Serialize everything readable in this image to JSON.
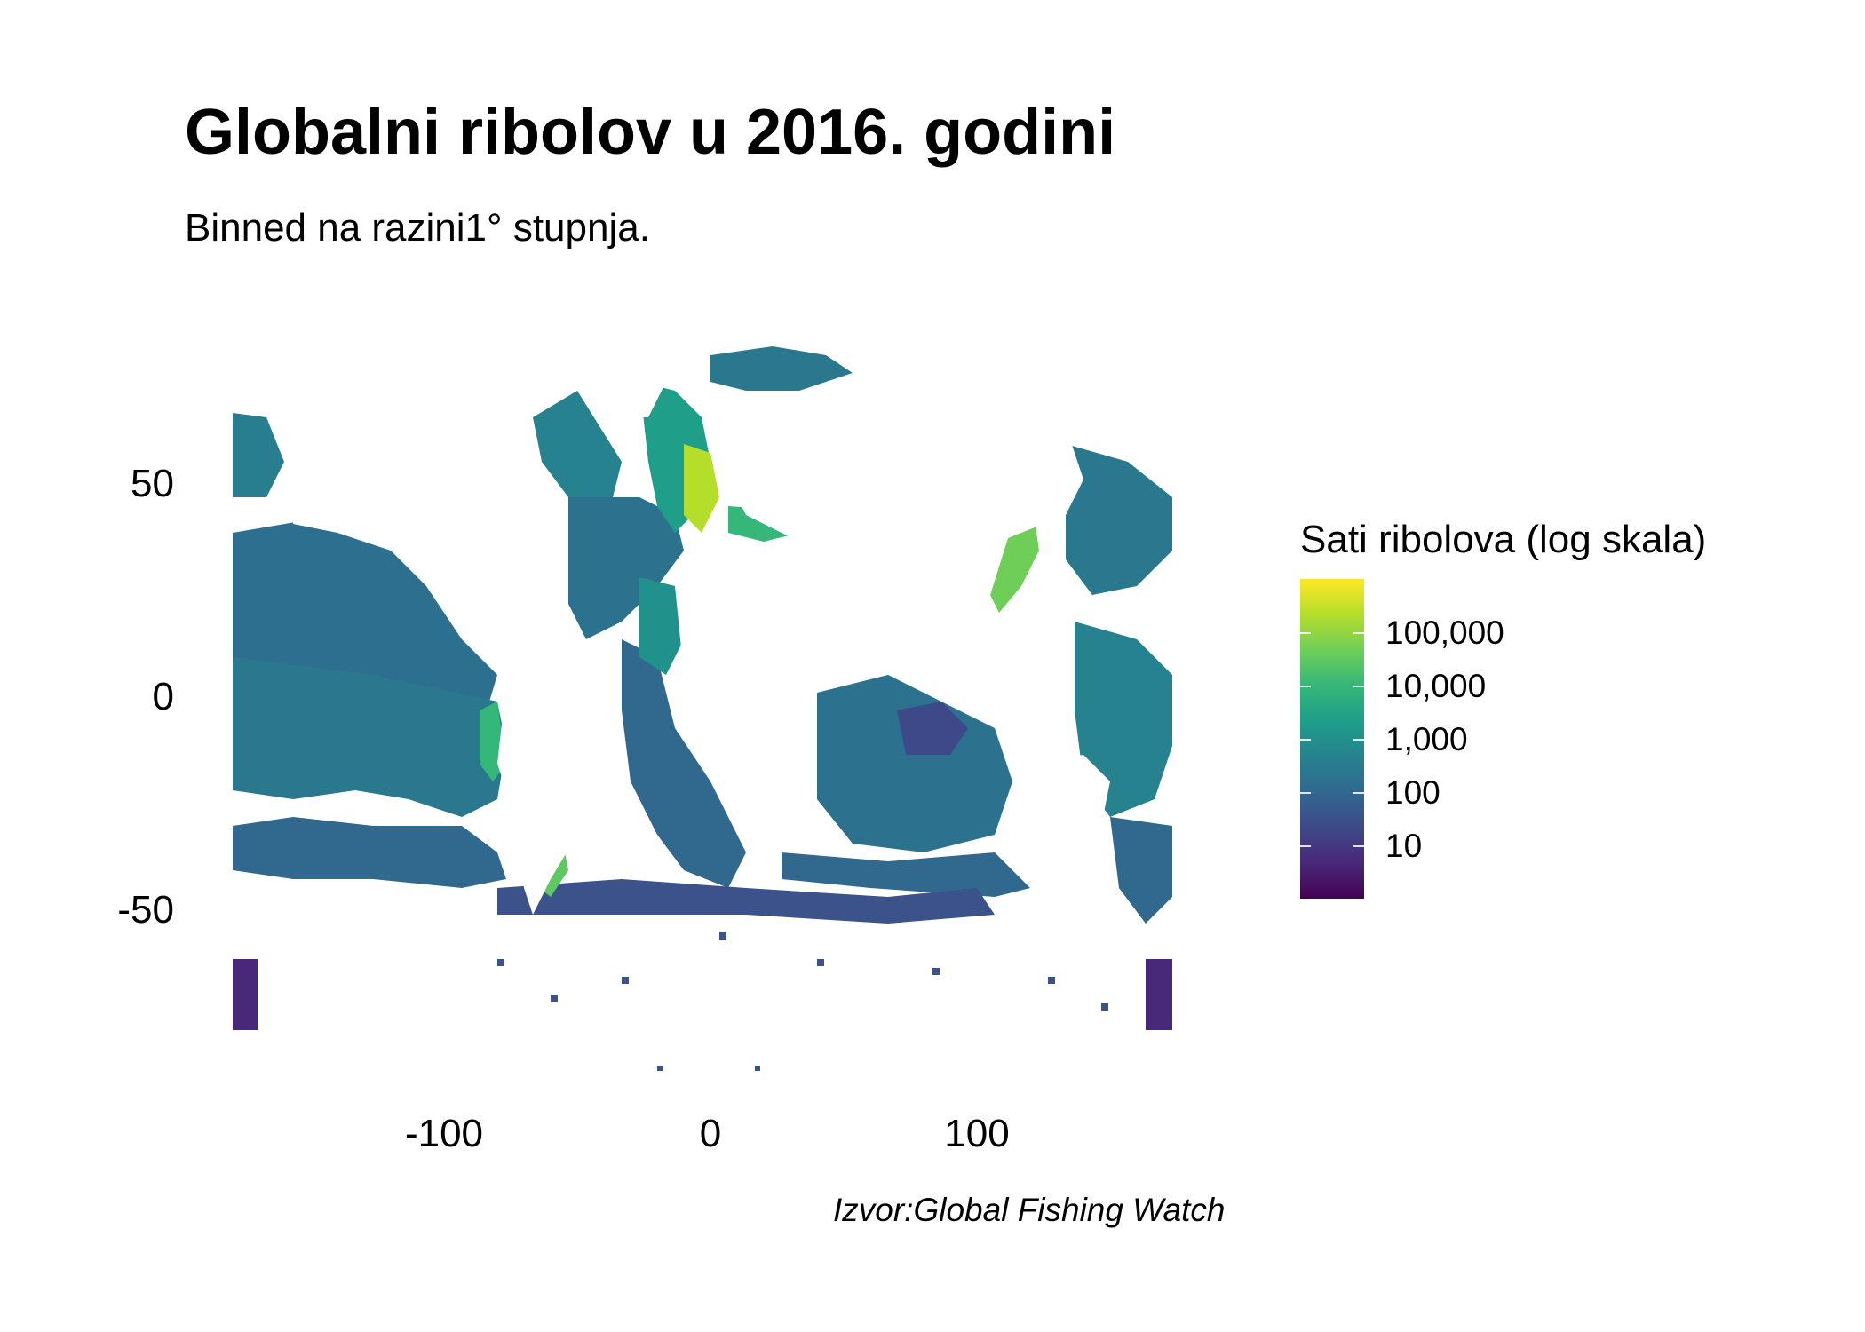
{
  "title": "Globalni ribolov u 2016. godini",
  "subtitle": "Binned na razini1° stupnja.",
  "caption": "Izvor:Global Fishing Watch",
  "map": {
    "x_ticks": [
      "-100",
      "0",
      "100"
    ],
    "y_ticks": [
      "50",
      "0",
      "-50"
    ],
    "lon_range": [
      -180,
      180
    ],
    "lat_range": [
      -90,
      80
    ],
    "colormap": "viridis",
    "land_color": "#ffffff"
  },
  "legend": {
    "title": "Sati ribolova (log skala)",
    "labels": [
      "100,000",
      "10,000",
      "1,000",
      "100",
      "10"
    ],
    "scale": "log",
    "position": "right",
    "color_low": "#440154",
    "color_high": "#fde725"
  }
}
